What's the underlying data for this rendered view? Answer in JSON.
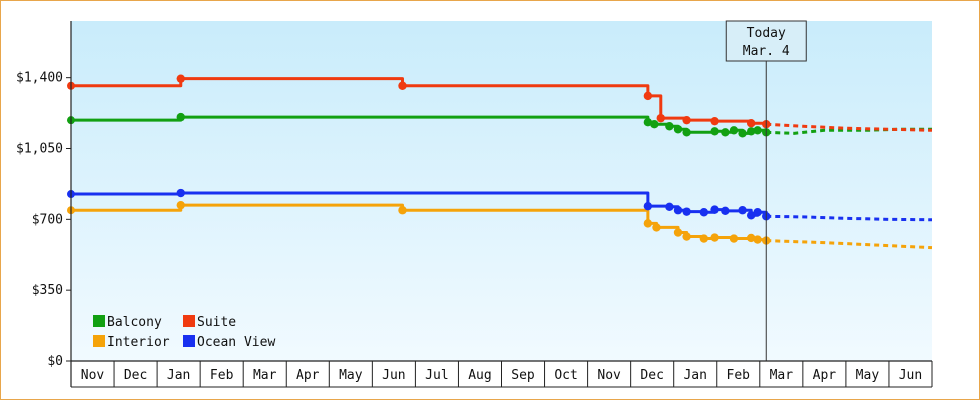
{
  "chart_data": {
    "type": "line",
    "title": "",
    "xlabel": "",
    "ylabel": "",
    "x_tick_labels": [
      "Nov",
      "Dec",
      "Jan",
      "Feb",
      "Mar",
      "Apr",
      "May",
      "Jun",
      "Jul",
      "Aug",
      "Sep",
      "Oct",
      "Nov",
      "Dec",
      "Jan",
      "Feb",
      "Mar",
      "Apr",
      "May",
      "Jun"
    ],
    "y_tick_labels": [
      "$0",
      "$350",
      "$700",
      "$1,050",
      "$1,400"
    ],
    "ylim": [
      0,
      1680
    ],
    "yticks": [
      0,
      350,
      700,
      1050,
      1400
    ],
    "grid": false,
    "legend_position": "bottom-left",
    "today_marker": {
      "line1": "Today",
      "line2": "Mar. 4",
      "x": 16.15
    },
    "series": [
      {
        "name": "Balcony",
        "color": "#12a012",
        "points": [
          [
            0.0,
            1190
          ],
          [
            2.5,
            1190
          ],
          [
            2.55,
            1205
          ],
          [
            13.35,
            1205
          ],
          [
            13.4,
            1180
          ],
          [
            13.55,
            1170
          ],
          [
            13.9,
            1160
          ],
          [
            14.1,
            1145
          ],
          [
            14.3,
            1130
          ],
          [
            14.7,
            1130
          ],
          [
            14.95,
            1135
          ],
          [
            15.2,
            1130
          ],
          [
            15.4,
            1140
          ],
          [
            15.6,
            1125
          ],
          [
            15.8,
            1135
          ],
          [
            15.95,
            1140
          ],
          [
            16.15,
            1130
          ]
        ],
        "forecast": [
          [
            16.15,
            1130
          ],
          [
            16.8,
            1125
          ],
          [
            17.5,
            1140
          ],
          [
            18.5,
            1140
          ],
          [
            19.2,
            1145
          ],
          [
            20.0,
            1145
          ]
        ]
      },
      {
        "name": "Suite",
        "color": "#f03a10",
        "points": [
          [
            0.0,
            1360
          ],
          [
            2.5,
            1360
          ],
          [
            2.55,
            1395
          ],
          [
            7.65,
            1395
          ],
          [
            7.7,
            1360
          ],
          [
            13.35,
            1360
          ],
          [
            13.4,
            1310
          ],
          [
            13.6,
            1310
          ],
          [
            13.7,
            1200
          ],
          [
            14.1,
            1200
          ],
          [
            14.3,
            1190
          ],
          [
            14.95,
            1185
          ],
          [
            15.6,
            1185
          ],
          [
            15.8,
            1175
          ],
          [
            15.95,
            1175
          ],
          [
            16.15,
            1170
          ]
        ],
        "forecast": [
          [
            16.15,
            1170
          ],
          [
            17.0,
            1160
          ],
          [
            18.0,
            1150
          ],
          [
            19.0,
            1145
          ],
          [
            20.0,
            1140
          ]
        ]
      },
      {
        "name": "Interior",
        "color": "#f5a30a",
        "points": [
          [
            0.0,
            745
          ],
          [
            2.5,
            745
          ],
          [
            2.55,
            770
          ],
          [
            7.65,
            770
          ],
          [
            7.7,
            745
          ],
          [
            13.35,
            745
          ],
          [
            13.4,
            680
          ],
          [
            13.6,
            660
          ],
          [
            14.1,
            635
          ],
          [
            14.3,
            615
          ],
          [
            14.7,
            605
          ],
          [
            14.95,
            610
          ],
          [
            15.4,
            605
          ],
          [
            15.8,
            608
          ],
          [
            15.95,
            600
          ],
          [
            16.15,
            595
          ]
        ],
        "forecast": [
          [
            16.15,
            595
          ],
          [
            16.8,
            590
          ],
          [
            17.5,
            585
          ],
          [
            18.5,
            575
          ],
          [
            19.2,
            568
          ],
          [
            20.0,
            560
          ]
        ]
      },
      {
        "name": "Ocean View",
        "color": "#1830f0",
        "points": [
          [
            0.0,
            825
          ],
          [
            2.5,
            825
          ],
          [
            2.55,
            830
          ],
          [
            13.35,
            830
          ],
          [
            13.4,
            765
          ],
          [
            13.9,
            762
          ],
          [
            14.1,
            745
          ],
          [
            14.3,
            738
          ],
          [
            14.7,
            735
          ],
          [
            14.95,
            748
          ],
          [
            15.2,
            742
          ],
          [
            15.6,
            745
          ],
          [
            15.8,
            720
          ],
          [
            15.95,
            735
          ],
          [
            16.15,
            715
          ]
        ],
        "forecast": [
          [
            16.15,
            715
          ],
          [
            17.0,
            712
          ],
          [
            18.0,
            705
          ],
          [
            19.0,
            700
          ],
          [
            20.0,
            698
          ]
        ]
      }
    ]
  }
}
